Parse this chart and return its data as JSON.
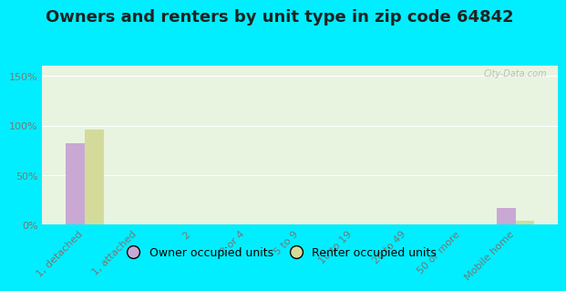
{
  "title": "Owners and renters by unit type in zip code 64842",
  "categories": [
    "1, detached",
    "1, attached",
    "2",
    "3 or 4",
    "5 to 9",
    "10 to 19",
    "20 to 49",
    "50 or more",
    "Mobile home"
  ],
  "owner_values": [
    82,
    0,
    0,
    0,
    0,
    0,
    0,
    0,
    17
  ],
  "renter_values": [
    96,
    0,
    0,
    0,
    0,
    0,
    0,
    0,
    4
  ],
  "owner_color": "#c9a8d4",
  "renter_color": "#d4db9a",
  "background_outer": "#00eeff",
  "background_plot": "#e8f4e0",
  "ylim": [
    0,
    160
  ],
  "yticks": [
    0,
    50,
    100,
    150
  ],
  "ytick_labels": [
    "0%",
    "50%",
    "100%",
    "150%"
  ],
  "bar_width": 0.35,
  "legend_owner": "Owner occupied units",
  "legend_renter": "Renter occupied units",
  "watermark": "City-Data.com",
  "title_fontsize": 13,
  "tick_fontsize": 8,
  "legend_fontsize": 9,
  "tick_color": "#777777"
}
